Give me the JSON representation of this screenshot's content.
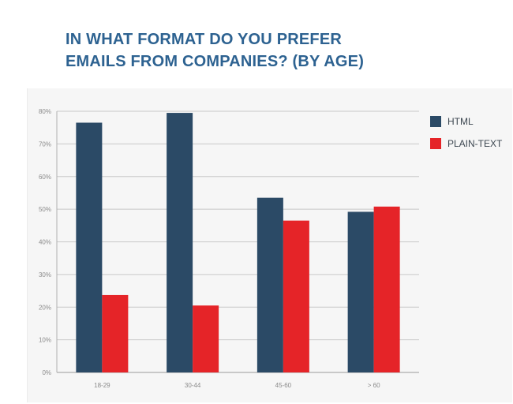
{
  "title": {
    "line1": "IN WHAT FORMAT DO YOU PREFER",
    "line2": "EMAILS FROM COMPANIES? (BY AGE)"
  },
  "colors": {
    "title": "#2d6291",
    "html_series": "#2b4a66",
    "plain_text_series": "#e52428",
    "panel_background": "#f6f6f6",
    "gridline": "#c8c8c8"
  },
  "chart_data": {
    "type": "bar",
    "title": "IN WHAT FORMAT DO YOU PREFER EMAILS FROM COMPANIES? (BY AGE)",
    "categories": [
      "18-29",
      "30-44",
      "45-60",
      "> 60"
    ],
    "series": [
      {
        "name": "HTML",
        "values": [
          76.5,
          79.5,
          53.5,
          49.2
        ],
        "color": "#2b4a66"
      },
      {
        "name": "PLAIN-TEXT",
        "values": [
          23.7,
          20.5,
          46.5,
          50.8
        ],
        "color": "#e52428"
      }
    ],
    "y_ticks": [
      "0%",
      "10%",
      "20%",
      "30%",
      "40%",
      "50%",
      "60%",
      "70%",
      "80%"
    ],
    "ylim": [
      0,
      80
    ],
    "ylabel": "",
    "xlabel": "",
    "grid": true,
    "legend": "right"
  }
}
